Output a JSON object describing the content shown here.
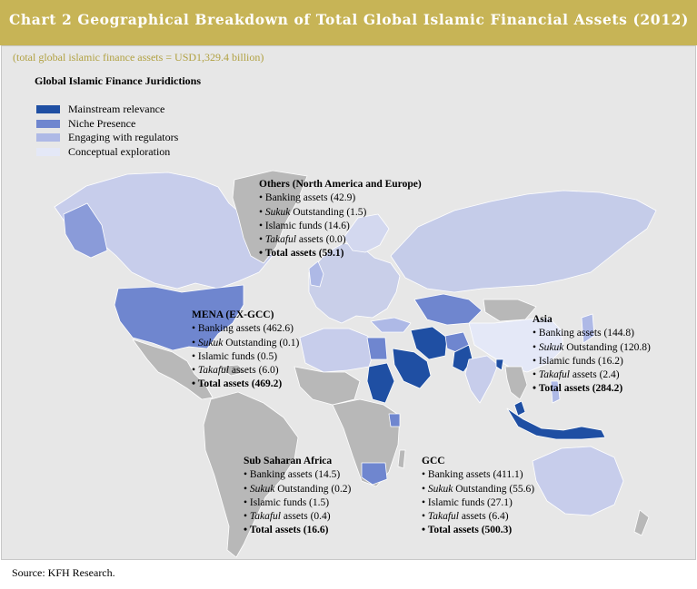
{
  "chart_title": "Chart 2 Geographical Breakdown of Total Global Islamic Financial Assets (2012)",
  "subtitle": "(total global islamic finance assets = USD1,329.4 billion)",
  "jurisdictions_title": "Global Islamic Finance Juridictions",
  "legend": [
    {
      "label": "Mainstream relevance",
      "color": "#1f4fa3"
    },
    {
      "label": "Niche Presence",
      "color": "#6f86cf"
    },
    {
      "label": "Engaging with regulators",
      "color": "#aeb9e6"
    },
    {
      "label": "Conceptual exploration",
      "color": "#e4e8f7"
    }
  ],
  "colors": {
    "title_bar": "#c7b456",
    "panel": "#e7e7e7",
    "ocean": "#e7e7e7",
    "unclassified_land": "#b8b8b8",
    "border": "#ffffff"
  },
  "regions": {
    "others": {
      "title": "Others (North America and Europe)",
      "banking": "Banking assets (42.9)",
      "sukuk_word": "Sukuk",
      "sukuk_rest": " Outstanding (1.5)",
      "funds": "Islamic funds (14.6)",
      "takaful_word": "Takaful",
      "takaful_rest": " assets (0.0)",
      "total": "Total assets (59.1)"
    },
    "mena": {
      "title": "MENA (EX-GCC)",
      "banking": "Banking assets (462.6)",
      "sukuk_word": "Sukuk",
      "sukuk_rest": " Outstanding (0.1)",
      "funds": "Islamic funds (0.5)",
      "takaful_word": "Takaful",
      "takaful_rest": " assets (6.0)",
      "total": "Total assets (469.2)"
    },
    "asia": {
      "title": "Asia",
      "banking": "Banking assets (144.8)",
      "sukuk_word": "Sukuk",
      "sukuk_rest": " Outstanding (120.8)",
      "funds": "Islamic funds (16.2)",
      "takaful_word": "Takaful",
      "takaful_rest": " assets (2.4)",
      "total": "Total assets (284.2)"
    },
    "ssa": {
      "title": "Sub Saharan Africa",
      "banking": "Banking assets (14.5)",
      "sukuk_word": "Sukuk",
      "sukuk_rest": " Outstanding (0.2)",
      "funds": "Islamic funds (1.5)",
      "takaful_word": "Takaful",
      "takaful_rest": " assets (0.4)",
      "total": "Total assets (16.6)"
    },
    "gcc": {
      "title": "GCC",
      "banking": "Banking assets (411.1)",
      "sukuk_word": "Sukuk",
      "sukuk_rest": " Outstanding (55.6)",
      "funds": "Islamic funds (27.1)",
      "takaful_word": "Takaful",
      "takaful_rest": " assets (6.4)",
      "total": "Total assets (500.3)"
    }
  },
  "bullet": "• ",
  "source": "Source: KFH Research."
}
